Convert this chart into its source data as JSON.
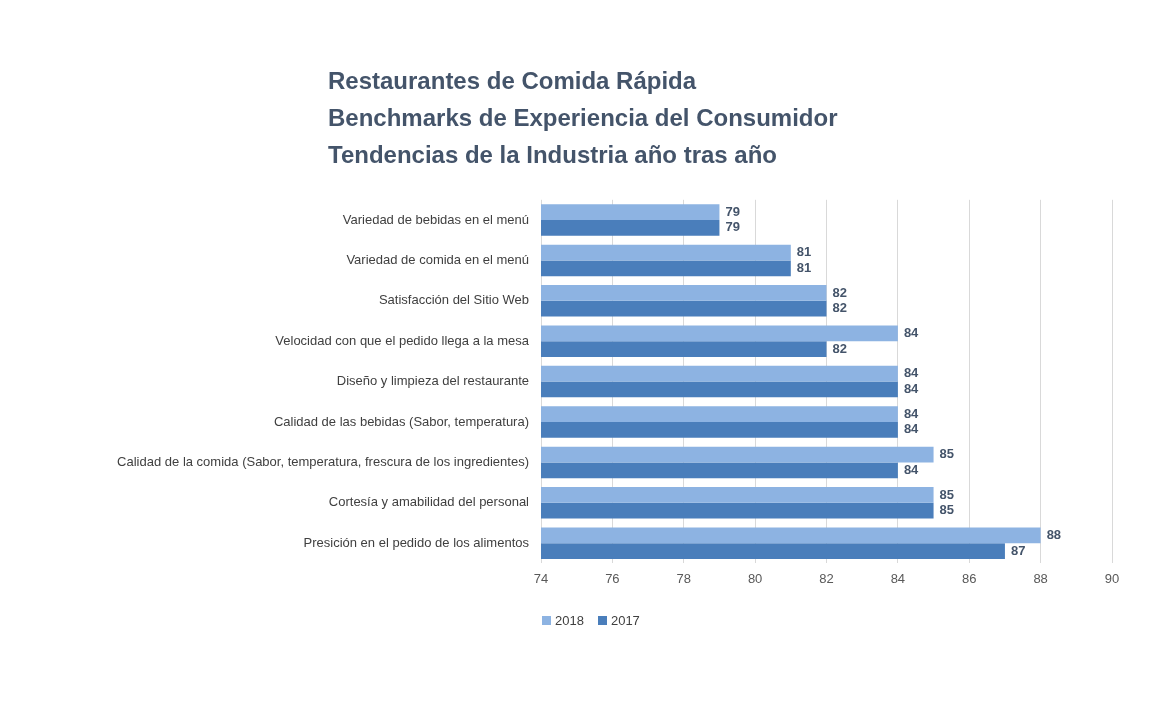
{
  "chart_data": {
    "type": "bar",
    "orientation": "horizontal",
    "title": "Restaurantes de Comida Rápida\nBenchmarks de Experiencia del Consumidor\nTendencias de la Industria año tras año",
    "categories": [
      "Variedad de bebidas en el menú",
      "Variedad de comida en el menú",
      "Satisfacción del Sitio Web",
      "Velocidad con que el pedido llega a la mesa",
      "Diseño y limpieza del restaurante",
      "Calidad de las bebidas (Sabor, temperatura)",
      "Calidad de la comida (Sabor, temperatura, frescura de los ingredientes)",
      "Cortesía y amabilidad del personal",
      "Presición en el pedido de los alimentos"
    ],
    "series": [
      {
        "name": "2018",
        "color": "#8db3e2",
        "values": [
          79,
          81,
          82,
          84,
          84,
          84,
          85,
          85,
          88
        ]
      },
      {
        "name": "2017",
        "color": "#4a7ebb",
        "values": [
          79,
          81,
          82,
          82,
          84,
          84,
          84,
          85,
          87
        ]
      }
    ],
    "xlim": [
      74,
      90
    ],
    "xticks": [
      74,
      76,
      78,
      80,
      82,
      84,
      86,
      88,
      90
    ],
    "grid": "x",
    "legend": "bottom left",
    "data_labels": true
  }
}
